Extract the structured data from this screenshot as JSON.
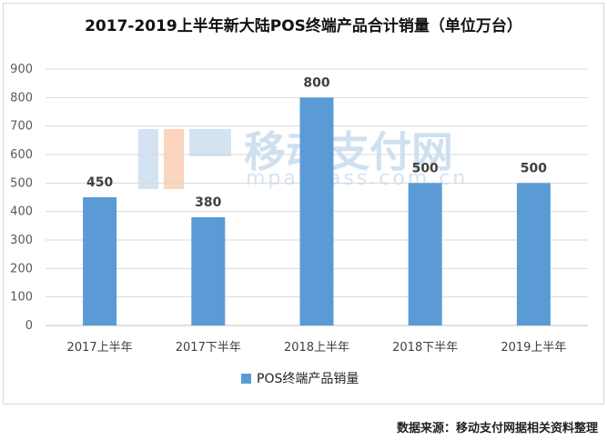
{
  "chart_data": {
    "type": "bar",
    "title": "2017-2019上半年新大陆POS终端产品合计销量（单位万台）",
    "categories": [
      "2017上半年",
      "2017下半年",
      "2018上半年",
      "2018下半年",
      "2019上半年"
    ],
    "series": [
      {
        "name": "POS终端产品销量",
        "values": [
          450,
          380,
          800,
          500,
          500
        ]
      }
    ],
    "data_labels": [
      "450",
      "380",
      "800",
      "500",
      "500"
    ],
    "ylim": [
      0,
      900
    ],
    "yticks": [
      0,
      100,
      200,
      300,
      400,
      500,
      600,
      700,
      800,
      900
    ],
    "ytick_labels": [
      "0",
      "100",
      "200",
      "300",
      "400",
      "500",
      "600",
      "700",
      "800",
      "900"
    ],
    "grid": true,
    "legend_position": "bottom",
    "bar_color": "#5b9bd5"
  },
  "watermark": {
    "text_cn": "移动支付网",
    "text_en": "mpaypass.com.cn"
  },
  "source": "数据来源：移动支付网据相关资料整理"
}
